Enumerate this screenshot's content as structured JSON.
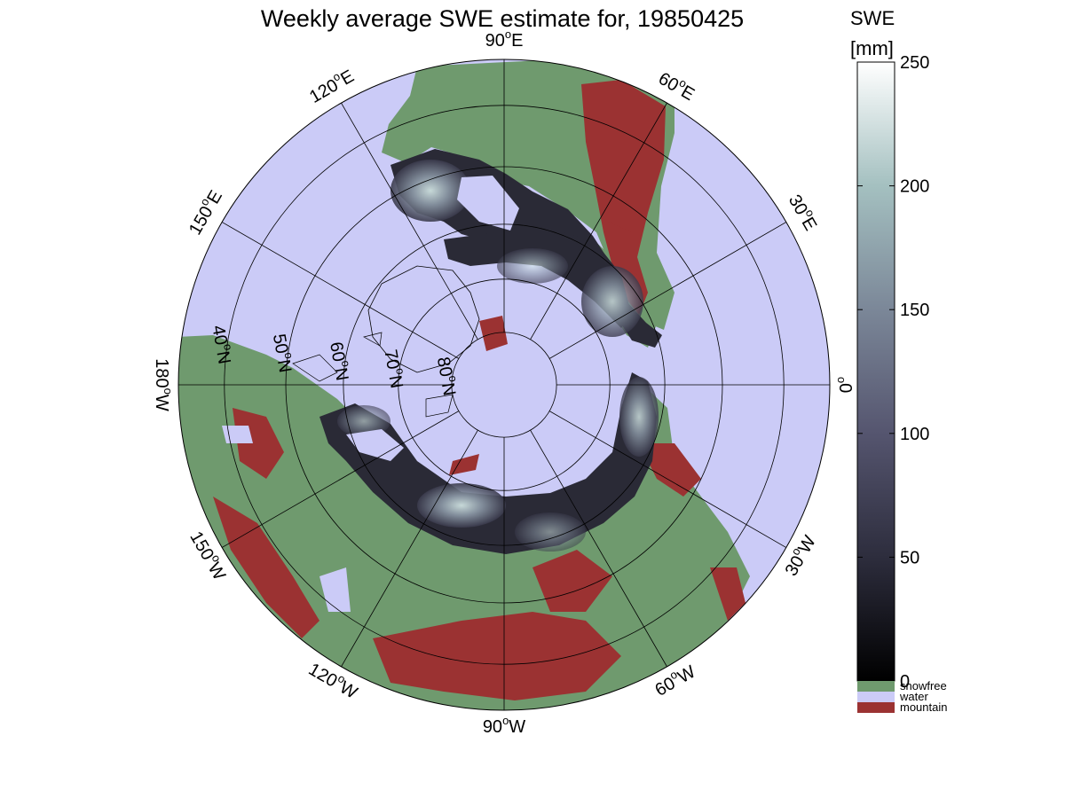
{
  "title": "Weekly average SWE estimate for, 19850425",
  "colorbar": {
    "title_line1": "SWE",
    "title_line2": "[mm]",
    "ticks": [
      0,
      50,
      100,
      150,
      200,
      250
    ],
    "tick_labels": [
      "0",
      "50",
      "100",
      "150",
      "200",
      "250"
    ],
    "range": [
      0,
      250
    ],
    "gradient_colors": [
      "#000000",
      "#2d2d3d",
      "#55556f",
      "#7b8798",
      "#a4c0c0",
      "#ffffff"
    ],
    "categories": [
      {
        "label": "snowfree",
        "color": "#6f9a6e"
      },
      {
        "label": "water",
        "color": "#cbcbf7"
      },
      {
        "label": "mountain",
        "color": "#9b3232"
      }
    ]
  },
  "map": {
    "projection": "north polar stereographic",
    "water_color": "#cbcbf7",
    "snowfree_color": "#6f9a6e",
    "mountain_color": "#9b3232",
    "longitude_labels": [
      {
        "deg": -90,
        "base": "90",
        "sup": "o",
        "suffix": "W"
      },
      {
        "deg": -120,
        "base": "120",
        "sup": "o",
        "suffix": "W"
      },
      {
        "deg": -150,
        "base": "150",
        "sup": "o",
        "suffix": "W"
      },
      {
        "deg": 180,
        "base": "180",
        "sup": "o",
        "suffix": "W"
      },
      {
        "deg": 150,
        "base": "150",
        "sup": "o",
        "suffix": "E"
      },
      {
        "deg": 120,
        "base": "120",
        "sup": "o",
        "suffix": "E"
      },
      {
        "deg": 90,
        "base": "90",
        "sup": "o",
        "suffix": "E"
      },
      {
        "deg": 60,
        "base": "60",
        "sup": "o",
        "suffix": "E"
      },
      {
        "deg": 30,
        "base": "30",
        "sup": "o",
        "suffix": "E"
      },
      {
        "deg": 0,
        "base": "0",
        "sup": "o",
        "suffix": ""
      },
      {
        "deg": -30,
        "base": "30",
        "sup": "o",
        "suffix": "W"
      },
      {
        "deg": -60,
        "base": "60",
        "sup": "o",
        "suffix": "W"
      }
    ],
    "latitude_labels": [
      {
        "lat": 80,
        "base": "80",
        "sup": "o",
        "suffix": "N"
      },
      {
        "lat": 70,
        "base": "70",
        "sup": "o",
        "suffix": "N"
      },
      {
        "lat": 60,
        "base": "60",
        "sup": "o",
        "suffix": "N"
      },
      {
        "lat": 50,
        "base": "50",
        "sup": "o",
        "suffix": "N"
      },
      {
        "lat": 40,
        "base": "40",
        "sup": "o",
        "suffix": "N"
      }
    ]
  }
}
